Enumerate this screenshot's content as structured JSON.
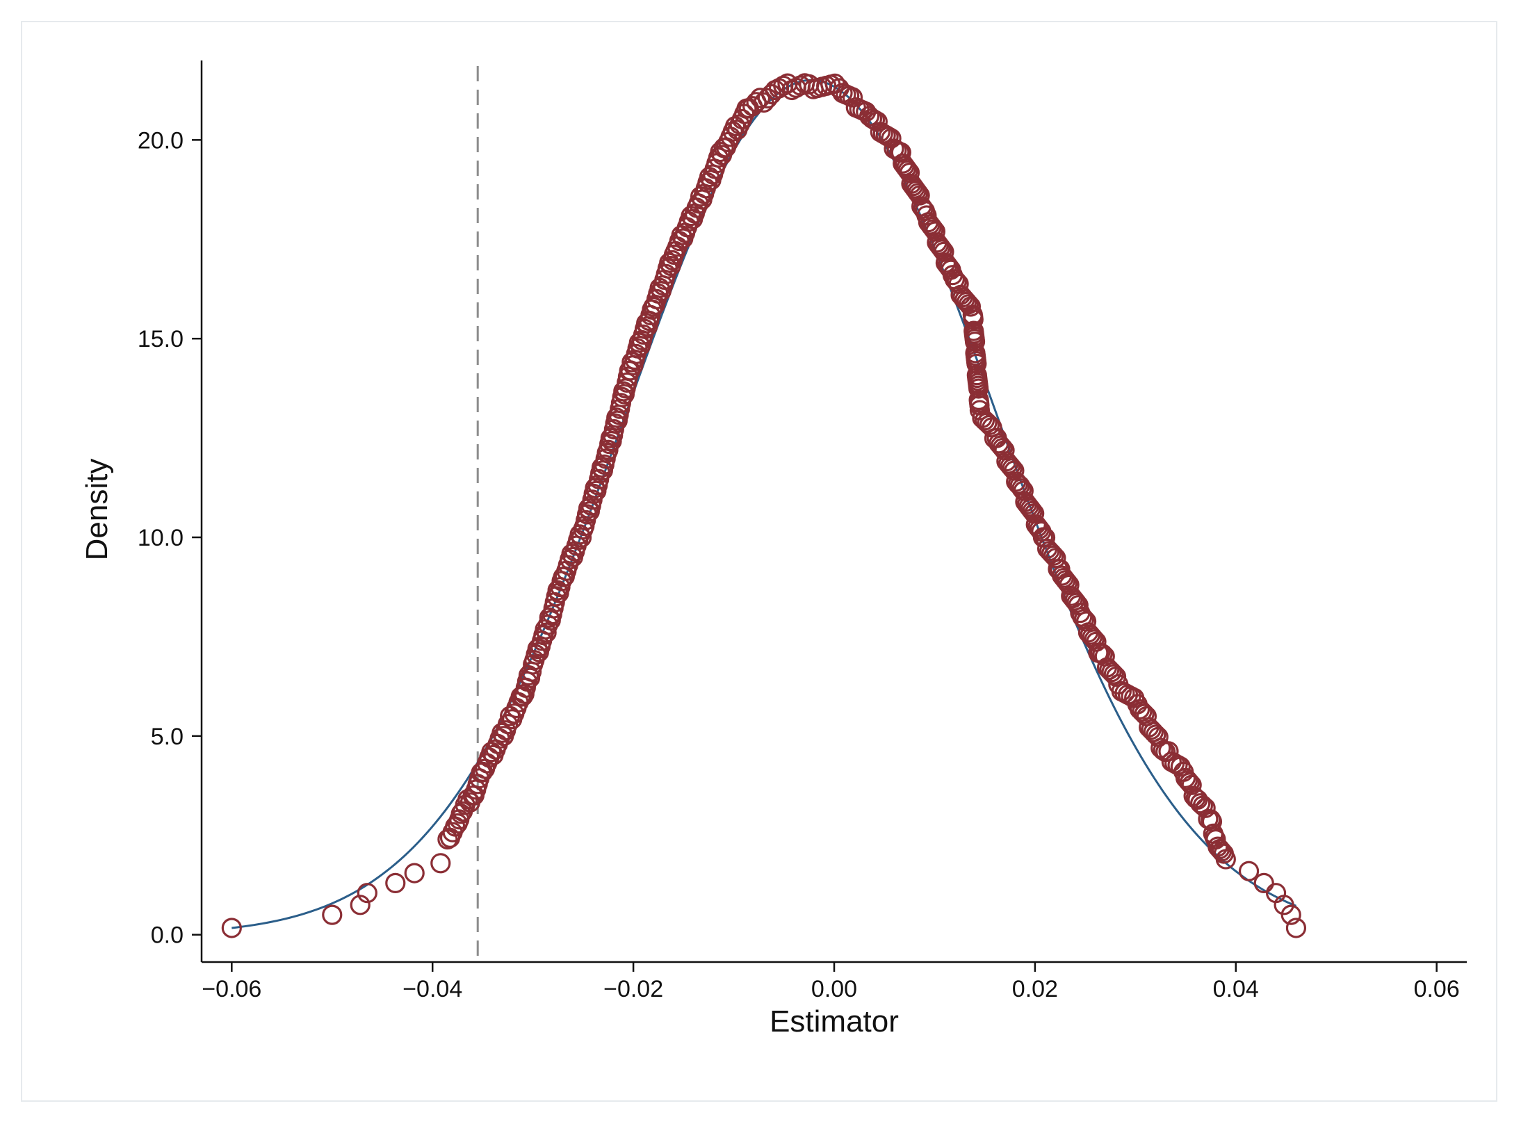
{
  "chart_data": {
    "type": "scatter",
    "title": "",
    "xlabel": "Estimator",
    "ylabel": "Density",
    "xlim": [
      -0.063,
      0.063
    ],
    "ylim": [
      -0.6,
      22.0
    ],
    "xticks": [
      -0.06,
      -0.04,
      -0.02,
      0.0,
      0.02,
      0.04,
      0.06
    ],
    "xtick_labels": [
      "−0.06",
      "−0.04",
      "−0.02",
      "0.00",
      "0.02",
      "0.04",
      "0.06"
    ],
    "yticks": [
      0,
      5,
      10,
      15,
      20
    ],
    "ytick_labels": [
      "0.0",
      "5.0",
      "10.0",
      "15.0",
      "20.0"
    ],
    "grid": false,
    "legend": "none",
    "reference_line": {
      "x": -0.0355,
      "style": "dashed",
      "color": "#8c8c8c"
    },
    "colors": {
      "markers": "#8b2e35",
      "curve": "#2b5e8a",
      "axes": "#111111"
    },
    "series": [
      {
        "type": "line",
        "normal_mean": -0.0023,
        "normal_sd": 0.01855,
        "x_range": [
          -0.06,
          0.046
        ],
        "x": [
          -0.06,
          -0.055,
          -0.05,
          -0.045,
          -0.04,
          -0.035,
          -0.03,
          -0.025,
          -0.02,
          -0.015,
          -0.01,
          -0.005,
          0.0,
          0.005,
          0.01,
          0.015,
          0.02,
          0.025,
          0.03,
          0.035,
          0.04,
          0.046
        ],
        "y": [
          0.17,
          0.38,
          0.77,
          1.46,
          2.59,
          4.19,
          6.3,
          8.67,
          11.03,
          13.56,
          15.97,
          19.3,
          21.26,
          20.5,
          17.94,
          14.66,
          11.57,
          8.36,
          5.28,
          3.14,
          1.9,
          0.8
        ]
      },
      {
        "type": "scatter",
        "marker": "hollow-circle",
        "x": [
          -0.06,
          -0.05,
          -0.0472,
          -0.0465,
          -0.0437,
          -0.0418,
          -0.0392,
          -0.0385,
          -0.0375,
          -0.037,
          -0.036,
          -0.035,
          -0.0335,
          -0.0325,
          -0.031,
          -0.03,
          -0.0285,
          -0.027,
          -0.025,
          -0.0225,
          -0.0203,
          -0.018,
          -0.0158,
          -0.0135,
          -0.011,
          -0.0085,
          -0.0055,
          -0.0025,
          0.0005,
          0.0035,
          0.0065,
          0.0092,
          0.0118,
          0.0138,
          0.0145,
          0.0162,
          0.0185,
          0.0208,
          0.0225,
          0.0245,
          0.0265,
          0.0283,
          0.0302,
          0.0318,
          0.033,
          0.0348,
          0.0362,
          0.0375,
          0.038,
          0.039,
          0.0413,
          0.0428,
          0.044,
          0.0448,
          0.0455,
          0.046
        ],
        "y": [
          0.17,
          0.5,
          0.75,
          1.05,
          1.3,
          1.55,
          1.8,
          2.4,
          2.8,
          3.1,
          3.5,
          4.1,
          4.8,
          5.3,
          6.0,
          6.8,
          7.8,
          9.0,
          10.2,
          12.2,
          14.2,
          15.8,
          17.2,
          18.4,
          19.8,
          20.8,
          21.3,
          21.4,
          21.3,
          20.6,
          19.7,
          18.1,
          16.6,
          15.6,
          13.2,
          12.5,
          11.3,
          10.0,
          9.2,
          8.1,
          7.1,
          6.3,
          5.8,
          5.1,
          4.6,
          4.1,
          3.4,
          2.9,
          2.4,
          1.9,
          1.6,
          1.3,
          1.05,
          0.75,
          0.5,
          0.17
        ]
      }
    ]
  }
}
